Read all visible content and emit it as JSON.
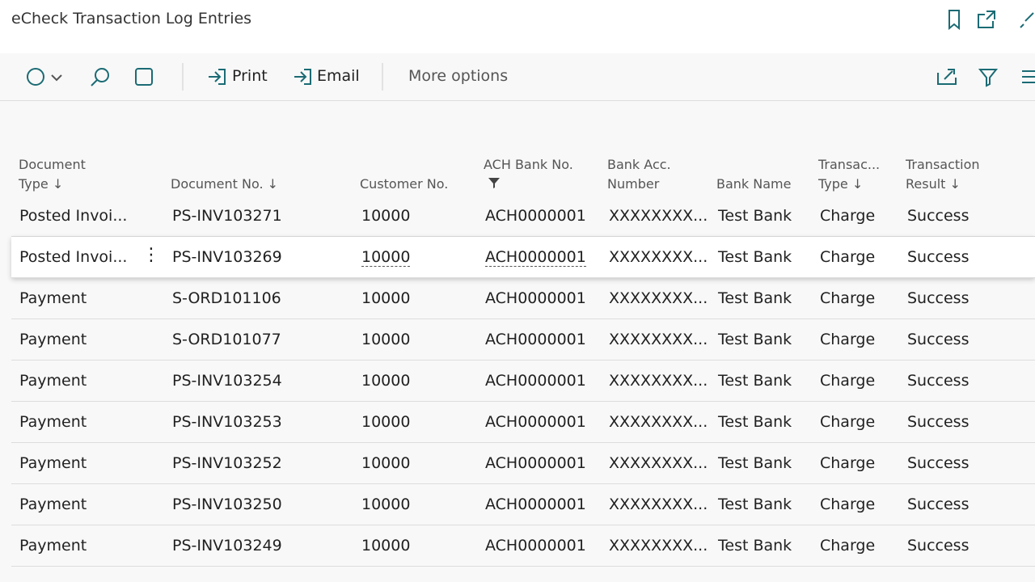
{
  "header": {
    "title": "eCheck Transaction Log Entries"
  },
  "toolbar": {
    "print": "Print",
    "email": "Email",
    "more": "More options"
  },
  "table": {
    "columns": [
      "Document Type",
      "Document No.",
      "Customer No.",
      "ACH Bank No.",
      "Bank Acc. Number",
      "Bank Name",
      "Transac... Type",
      "Transaction Result"
    ],
    "rows": [
      [
        "Posted Invoi...",
        "PS-INV103271",
        "10000",
        "ACH0000001",
        "XXXXXXXX...",
        "Test Bank",
        "Charge",
        "Success"
      ],
      [
        "Posted Invoi...",
        "PS-INV103269",
        "10000",
        "ACH0000001",
        "XXXXXXXX...",
        "Test Bank",
        "Charge",
        "Success"
      ],
      [
        "Payment",
        "S-ORD101106",
        "10000",
        "ACH0000001",
        "XXXXXXXX...",
        "Test Bank",
        "Charge",
        "Success"
      ],
      [
        "Payment",
        "S-ORD101077",
        "10000",
        "ACH0000001",
        "XXXXXXXX...",
        "Test Bank",
        "Charge",
        "Success"
      ],
      [
        "Payment",
        "PS-INV103254",
        "10000",
        "ACH0000001",
        "XXXXXXXX...",
        "Test Bank",
        "Charge",
        "Success"
      ],
      [
        "Payment",
        "PS-INV103253",
        "10000",
        "ACH0000001",
        "XXXXXXXX...",
        "Test Bank",
        "Charge",
        "Success"
      ],
      [
        "Payment",
        "PS-INV103252",
        "10000",
        "ACH0000001",
        "XXXXXXXX...",
        "Test Bank",
        "Charge",
        "Success"
      ],
      [
        "Payment",
        "PS-INV103250",
        "10000",
        "ACH0000001",
        "XXXXXXXX...",
        "Test Bank",
        "Charge",
        "Success"
      ],
      [
        "Payment",
        "PS-INV103249",
        "10000",
        "ACH0000001",
        "XXXXXXXX...",
        "Test Bank",
        "Charge",
        "Success"
      ]
    ]
  }
}
